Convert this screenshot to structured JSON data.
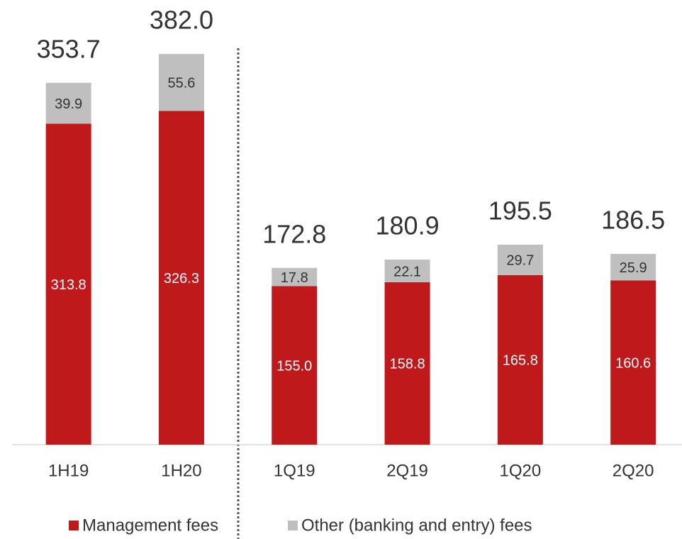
{
  "chart_data": {
    "type": "stacked_bar",
    "categories": [
      "1H19",
      "1H20",
      "1Q19",
      "2Q19",
      "1Q20",
      "2Q20"
    ],
    "series": [
      {
        "name": "Management fees",
        "color": "#c0191b",
        "values": [
          313.8,
          326.3,
          155.0,
          158.8,
          165.8,
          160.6
        ],
        "value_labels": [
          "313.8",
          "326.3",
          "155.0",
          "158.8",
          "165.8",
          "160.6"
        ]
      },
      {
        "name": "Other (banking and entry) fees",
        "color": "#bfbfbf",
        "values": [
          39.9,
          55.6,
          17.8,
          22.1,
          29.7,
          25.9
        ],
        "value_labels": [
          "39.9",
          "55.6",
          "17.8",
          "22.1",
          "29.7",
          "25.9"
        ]
      }
    ],
    "totals": [
      353.7,
      382.0,
      172.8,
      180.9,
      195.5,
      186.5
    ],
    "total_labels": [
      "353.7",
      "382.0",
      "172.8",
      "180.9",
      "195.5",
      "186.5"
    ],
    "ylim": [
      0,
      400
    ],
    "legend": "bottom"
  }
}
